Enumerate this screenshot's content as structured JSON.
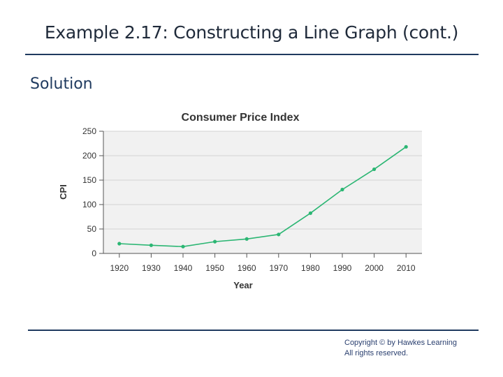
{
  "slide": {
    "title": "Example 2.17: Constructing a Line Graph (cont.)",
    "subtitle": "Solution",
    "copyright_line1": "Copyright © by Hawkes Learning",
    "copyright_line2": "All rights reserved."
  },
  "chart_data": {
    "type": "line",
    "title": "Consumer Price Index",
    "xlabel": "Year",
    "ylabel": "CPI",
    "x": [
      1920,
      1930,
      1940,
      1950,
      1960,
      1970,
      1980,
      1990,
      2000,
      2010
    ],
    "series": [
      {
        "values": [
          20,
          16.7,
          14,
          24.1,
          29.6,
          38.8,
          82.4,
          130.7,
          172.2,
          218.1
        ]
      }
    ],
    "ylim": [
      0,
      250
    ],
    "yticks": [
      0,
      50,
      100,
      150,
      200,
      250
    ],
    "grid": true,
    "line_color": "#2bb673",
    "plot_background": "#f1f1f1"
  }
}
